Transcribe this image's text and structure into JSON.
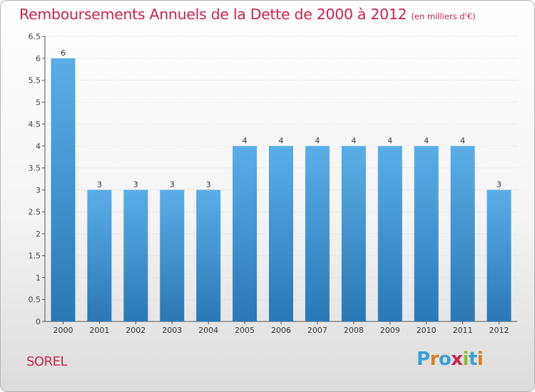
{
  "header": {
    "title": "Remboursements Annuels de la Dette de 2000 à 2012",
    "unit": "(en milliers d'€)"
  },
  "footer": {
    "commune": "SOREL",
    "logo_text": "Proxiti",
    "logo_letters": [
      {
        "ch": "P",
        "color": "#3aa0d8"
      },
      {
        "ch": "r",
        "color": "#e07c24"
      },
      {
        "ch": "o",
        "color": "#3aa0d8"
      },
      {
        "ch": "x",
        "color": "#c8244e"
      },
      {
        "ch": "i",
        "color": "#8dbd2e"
      },
      {
        "ch": "t",
        "color": "#3aa0d8"
      },
      {
        "ch": "i",
        "color": "#e07c24"
      }
    ]
  },
  "colors": {
    "accent": "#c8244e",
    "bar_top": "#5aaee8",
    "bar_bottom": "#2a78b6",
    "axis": "#555555",
    "grid": "#d4d4d4"
  },
  "chart_data": {
    "type": "bar",
    "title": "Remboursements Annuels de la Dette de 2000 à 2012",
    "unit": "(en milliers d'€)",
    "categories": [
      "2000",
      "2001",
      "2002",
      "2003",
      "2004",
      "2005",
      "2006",
      "2007",
      "2008",
      "2009",
      "2010",
      "2011",
      "2012"
    ],
    "values": [
      6,
      3,
      3,
      3,
      3,
      4,
      4,
      4,
      4,
      4,
      4,
      4,
      3
    ],
    "data_labels": [
      "6",
      "3",
      "3",
      "3",
      "3",
      "4",
      "4",
      "4",
      "4",
      "4",
      "4",
      "4",
      "3"
    ],
    "yticks": [
      "0",
      "0.5",
      "1",
      "1.5",
      "2",
      "2.5",
      "3",
      "3.5",
      "4",
      "4.5",
      "5",
      "5.5",
      "6",
      "6.5"
    ],
    "ylim": [
      0,
      6.5
    ],
    "grid": true,
    "legend": "none"
  }
}
